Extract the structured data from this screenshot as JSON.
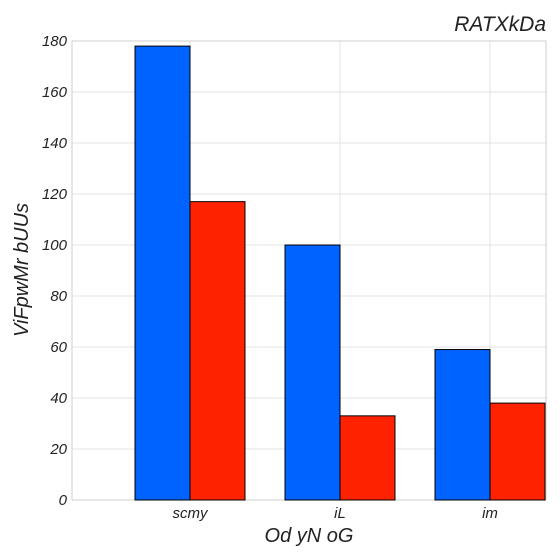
{
  "chart_data": {
    "type": "bar",
    "title": "RATXkDa",
    "xlabel": "Od yN oG",
    "ylabel": "ViFpwMr bUUs",
    "categories": [
      "scmy",
      "iL",
      "im"
    ],
    "series": [
      {
        "color": "#0062ff",
        "values": [
          178,
          100,
          59
        ]
      },
      {
        "color": "#ff2200",
        "values": [
          117,
          33,
          38
        ]
      }
    ],
    "ylim": [
      0,
      180
    ],
    "yticks": [
      0,
      20,
      40,
      60,
      80,
      100,
      120,
      140,
      160,
      180
    ],
    "grid": true,
    "legend": "none"
  }
}
